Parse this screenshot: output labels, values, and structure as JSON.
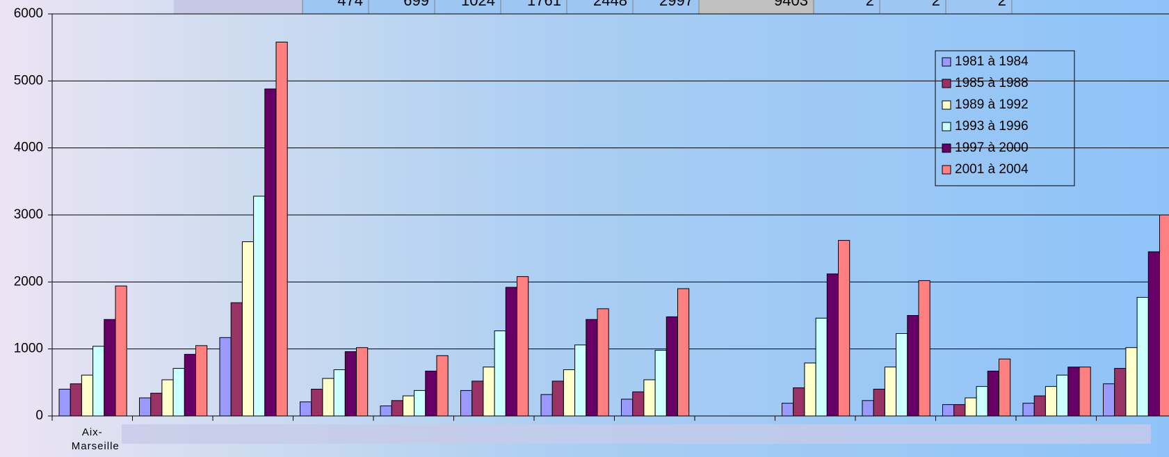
{
  "top_table_row": [
    "474",
    "699",
    "1024",
    "1761",
    "2448",
    "2997",
    "9403",
    "2",
    "2",
    "2"
  ],
  "chart_data": {
    "type": "bar",
    "categories": [
      "Aix-Marseille",
      null,
      null,
      null,
      null,
      null,
      null,
      null,
      null,
      null,
      null,
      null,
      null,
      null
    ],
    "series": [
      {
        "name": "1981 à 1984",
        "color": "#9999ff",
        "values": [
          400,
          270,
          1170,
          210,
          150,
          380,
          320,
          250,
          null,
          190,
          230,
          170,
          190,
          480
        ]
      },
      {
        "name": "1985 à 1988",
        "color": "#993366",
        "values": [
          480,
          340,
          1690,
          400,
          230,
          520,
          520,
          360,
          null,
          420,
          400,
          170,
          300,
          710
        ]
      },
      {
        "name": "1989 à 1992",
        "color": "#ffffcc",
        "values": [
          610,
          540,
          2600,
          560,
          300,
          730,
          690,
          540,
          null,
          790,
          730,
          270,
          440,
          1020
        ]
      },
      {
        "name": "1993 à 1996",
        "color": "#ccffff",
        "values": [
          1040,
          710,
          3280,
          690,
          380,
          1270,
          1060,
          980,
          null,
          1460,
          1230,
          440,
          610,
          1770
        ]
      },
      {
        "name": "1997 à 2000",
        "color": "#660066",
        "values": [
          1440,
          920,
          4880,
          960,
          670,
          1920,
          1440,
          1480,
          null,
          2120,
          1500,
          670,
          730,
          2450
        ]
      },
      {
        "name": "2001 à 2004",
        "color": "#ff8080",
        "values": [
          1940,
          1050,
          5580,
          1020,
          900,
          2080,
          1600,
          1900,
          null,
          2620,
          2020,
          850,
          730,
          3000
        ]
      }
    ],
    "ylim": [
      0,
      6000
    ],
    "yticks": [
      0,
      1000,
      2000,
      3000,
      4000,
      5000,
      6000
    ],
    "grid": true,
    "legend": "top-right"
  }
}
